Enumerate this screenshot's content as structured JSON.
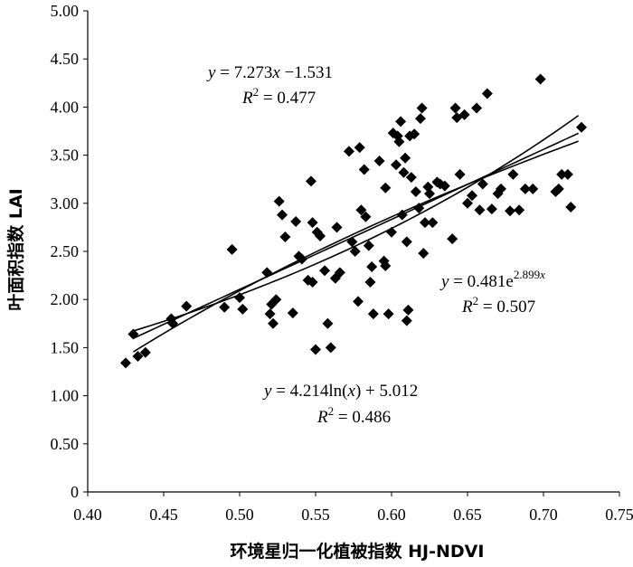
{
  "chart_data": {
    "type": "scatter",
    "xlabel": "环境星归一化植被指数 HJ-NDVI",
    "ylabel": "叶面积指数 LAI",
    "xlim": [
      0.4,
      0.75
    ],
    "ylim": [
      0,
      5.0
    ],
    "x_ticks": [
      0.4,
      0.45,
      0.5,
      0.55,
      0.6,
      0.65,
      0.7,
      0.75
    ],
    "x_tick_labels": [
      "0.40",
      "0.45",
      "0.50",
      "0.55",
      "0.60",
      "0.65",
      "0.70",
      "0.75"
    ],
    "y_ticks": [
      0,
      0.5,
      1.0,
      1.5,
      2.0,
      2.5,
      3.0,
      3.5,
      4.0,
      4.5,
      5.0
    ],
    "y_tick_labels": [
      "0",
      "0.50",
      "1.00",
      "1.50",
      "2.00",
      "2.50",
      "3.00",
      "3.50",
      "4.00",
      "4.50",
      "5.00"
    ],
    "grid": false,
    "marker": "diamond",
    "marker_color": "#000000",
    "line_color": "#000000",
    "points": [
      [
        0.425,
        1.34
      ],
      [
        0.43,
        1.64
      ],
      [
        0.433,
        1.41
      ],
      [
        0.438,
        1.45
      ],
      [
        0.455,
        1.8
      ],
      [
        0.456,
        1.75
      ],
      [
        0.465,
        1.93
      ],
      [
        0.49,
        1.92
      ],
      [
        0.495,
        2.52
      ],
      [
        0.5,
        2.02
      ],
      [
        0.502,
        1.9
      ],
      [
        0.518,
        2.28
      ],
      [
        0.52,
        1.85
      ],
      [
        0.521,
        1.95
      ],
      [
        0.522,
        1.75
      ],
      [
        0.524,
        2.0
      ],
      [
        0.526,
        3.02
      ],
      [
        0.528,
        2.88
      ],
      [
        0.53,
        2.65
      ],
      [
        0.535,
        1.86
      ],
      [
        0.537,
        2.81
      ],
      [
        0.539,
        2.45
      ],
      [
        0.541,
        2.42
      ],
      [
        0.545,
        2.2
      ],
      [
        0.547,
        3.23
      ],
      [
        0.548,
        2.18
      ],
      [
        0.548,
        2.8
      ],
      [
        0.55,
        1.48
      ],
      [
        0.551,
        2.7
      ],
      [
        0.553,
        2.66
      ],
      [
        0.556,
        2.3
      ],
      [
        0.558,
        1.75
      ],
      [
        0.56,
        1.5
      ],
      [
        0.563,
        2.22
      ],
      [
        0.564,
        2.75
      ],
      [
        0.566,
        2.28
      ],
      [
        0.572,
        3.54
      ],
      [
        0.574,
        2.6
      ],
      [
        0.576,
        2.5
      ],
      [
        0.578,
        1.98
      ],
      [
        0.579,
        3.58
      ],
      [
        0.58,
        2.93
      ],
      [
        0.582,
        3.35
      ],
      [
        0.583,
        2.86
      ],
      [
        0.585,
        2.56
      ],
      [
        0.586,
        2.18
      ],
      [
        0.587,
        2.34
      ],
      [
        0.588,
        1.85
      ],
      [
        0.592,
        3.44
      ],
      [
        0.595,
        2.4
      ],
      [
        0.596,
        3.16
      ],
      [
        0.596,
        2.35
      ],
      [
        0.598,
        1.85
      ],
      [
        0.6,
        2.7
      ],
      [
        0.601,
        3.73
      ],
      [
        0.603,
        3.4
      ],
      [
        0.604,
        3.7
      ],
      [
        0.605,
        3.64
      ],
      [
        0.606,
        3.85
      ],
      [
        0.607,
        2.88
      ],
      [
        0.608,
        3.32
      ],
      [
        0.609,
        3.47
      ],
      [
        0.61,
        2.6
      ],
      [
        0.61,
        1.78
      ],
      [
        0.611,
        1.89
      ],
      [
        0.612,
        3.7
      ],
      [
        0.613,
        3.27
      ],
      [
        0.615,
        3.72
      ],
      [
        0.616,
        3.12
      ],
      [
        0.618,
        2.95
      ],
      [
        0.619,
        3.88
      ],
      [
        0.62,
        3.99
      ],
      [
        0.621,
        2.48
      ],
      [
        0.622,
        2.8
      ],
      [
        0.624,
        3.17
      ],
      [
        0.625,
        3.1
      ],
      [
        0.627,
        2.8
      ],
      [
        0.63,
        3.22
      ],
      [
        0.632,
        3.2
      ],
      [
        0.635,
        3.18
      ],
      [
        0.64,
        2.63
      ],
      [
        0.642,
        3.99
      ],
      [
        0.643,
        3.89
      ],
      [
        0.645,
        3.3
      ],
      [
        0.648,
        3.92
      ],
      [
        0.65,
        3.0
      ],
      [
        0.653,
        3.08
      ],
      [
        0.656,
        3.99
      ],
      [
        0.658,
        2.93
      ],
      [
        0.66,
        3.2
      ],
      [
        0.663,
        4.14
      ],
      [
        0.666,
        2.94
      ],
      [
        0.67,
        3.1
      ],
      [
        0.672,
        3.15
      ],
      [
        0.678,
        2.92
      ],
      [
        0.68,
        3.3
      ],
      [
        0.684,
        2.93
      ],
      [
        0.688,
        3.15
      ],
      [
        0.693,
        3.15
      ],
      [
        0.698,
        4.29
      ],
      [
        0.708,
        3.12
      ],
      [
        0.71,
        3.15
      ],
      [
        0.712,
        3.3
      ],
      [
        0.716,
        3.3
      ],
      [
        0.718,
        2.96
      ],
      [
        0.725,
        3.79
      ]
    ],
    "fits": [
      {
        "name": "linear",
        "x_range": [
          0.43,
          0.723
        ],
        "annotation": {
          "eq_prefix": "y",
          "eq_equals": " = 7.273",
          "eq_var": "x",
          "eq_rest": " −1.531",
          "r2_label": "R",
          "r2_sup": "2",
          "r2_value": " = 0.477"
        }
      },
      {
        "name": "exponential",
        "x_range": [
          0.43,
          0.723
        ],
        "annotation": {
          "eq_prefix": "y",
          "eq_equals": " = 0.481e",
          "eq_sup": "2.899",
          "eq_sup_var": "x",
          "r2_label": "R",
          "r2_sup": "2",
          "r2_value": " = 0.507"
        }
      },
      {
        "name": "logarithmic",
        "x_range": [
          0.43,
          0.723
        ],
        "annotation": {
          "eq_prefix": "y",
          "eq_equals": " = 4.214ln(",
          "eq_var": "x",
          "eq_rest": ") + 5.012",
          "r2_label": "R",
          "r2_sup": "2",
          "r2_value": " = 0.486"
        }
      }
    ]
  }
}
